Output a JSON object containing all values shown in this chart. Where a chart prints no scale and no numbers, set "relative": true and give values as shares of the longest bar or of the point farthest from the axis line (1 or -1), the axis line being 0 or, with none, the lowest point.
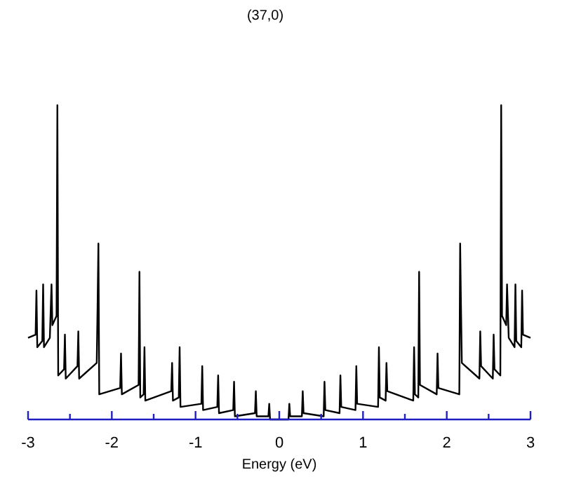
{
  "chart_data": {
    "type": "line",
    "title": "(37,0)",
    "xlabel": "Energy (eV)",
    "relative": true,
    "xlim": [
      -3,
      3
    ],
    "xticks": [
      -3,
      {
        "value": -2.5,
        "label": null
      },
      -2,
      {
        "value": -1.5,
        "label": null
      },
      -1,
      {
        "value": -0.5,
        "label": null
      },
      0,
      {
        "value": 0.5,
        "label": null
      },
      1,
      {
        "value": 1.5,
        "label": null
      },
      2,
      {
        "value": 2.5,
        "label": null
      },
      3
    ],
    "x": [
      -3.0,
      -2.91,
      -2.9,
      -2.89,
      -2.83,
      -2.82,
      -2.81,
      -2.74,
      -2.72,
      -2.71,
      -2.66,
      -2.65,
      -2.64,
      -2.57,
      -2.56,
      -2.55,
      -2.41,
      -2.4,
      -2.39,
      -2.18,
      -2.17,
      -2.16,
      -2.15,
      -1.9,
      -1.89,
      -1.88,
      -1.68,
      -1.67,
      -1.66,
      -1.62,
      -1.61,
      -1.6,
      -1.29,
      -1.28,
      -1.27,
      -1.2,
      -1.19,
      -1.18,
      -0.93,
      -0.92,
      -0.91,
      -0.74,
      -0.73,
      -0.72,
      -0.55,
      -0.54,
      -0.53,
      -0.29,
      -0.28,
      -0.27,
      -0.13,
      -0.12,
      -0.11,
      0.11,
      0.12,
      0.13,
      0.27,
      0.28,
      0.29,
      0.53,
      0.54,
      0.55,
      0.72,
      0.73,
      0.74,
      0.91,
      0.92,
      0.93,
      1.18,
      1.19,
      1.2,
      1.27,
      1.28,
      1.29,
      1.6,
      1.61,
      1.62,
      1.66,
      1.67,
      1.68,
      1.88,
      1.89,
      1.9,
      2.15,
      2.16,
      2.17,
      2.18,
      2.39,
      2.4,
      2.41,
      2.55,
      2.56,
      2.57,
      2.64,
      2.65,
      2.66,
      2.71,
      2.72,
      2.74,
      2.81,
      2.82,
      2.83,
      2.89,
      2.9,
      2.91,
      3.0
    ],
    "series": [
      {
        "color": "#000000",
        "values": [
          0.26,
          0.27,
          0.41,
          0.23,
          0.25,
          0.43,
          0.23,
          0.26,
          0.43,
          0.3,
          0.33,
          1.0,
          0.14,
          0.16,
          0.27,
          0.13,
          0.17,
          0.28,
          0.13,
          0.18,
          0.36,
          0.56,
          0.08,
          0.1,
          0.21,
          0.08,
          0.11,
          0.47,
          0.07,
          0.08,
          0.23,
          0.06,
          0.09,
          0.18,
          0.06,
          0.07,
          0.23,
          0.04,
          0.05,
          0.17,
          0.03,
          0.04,
          0.14,
          0.02,
          0.03,
          0.12,
          0.01,
          0.02,
          0.09,
          0.01,
          0.01,
          0.05,
          0,
          0,
          0.05,
          0.01,
          0.01,
          0.09,
          0.02,
          0.01,
          0.12,
          0.03,
          0.02,
          0.14,
          0.04,
          0.03,
          0.17,
          0.05,
          0.04,
          0.23,
          0.07,
          0.06,
          0.18,
          0.09,
          0.06,
          0.23,
          0.08,
          0.07,
          0.47,
          0.11,
          0.08,
          0.21,
          0.1,
          0.08,
          0.56,
          0.36,
          0.18,
          0.13,
          0.28,
          0.17,
          0.13,
          0.27,
          0.16,
          0.14,
          1.0,
          0.33,
          0.3,
          0.43,
          0.26,
          0.23,
          0.43,
          0.25,
          0.23,
          0.41,
          0.27,
          0.26
        ]
      }
    ]
  }
}
